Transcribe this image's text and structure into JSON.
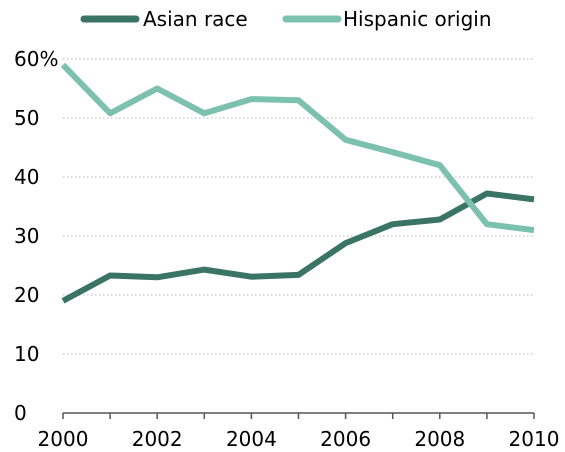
{
  "chart_data": {
    "type": "line",
    "title": "",
    "xlabel": "",
    "ylabel": "",
    "x": [
      2000,
      2001,
      2002,
      2003,
      2004,
      2005,
      2006,
      2007,
      2008,
      2009,
      2010
    ],
    "x_tick_labels": [
      "2000",
      "2002",
      "2004",
      "2006",
      "2008",
      "2010"
    ],
    "y_tick_labels": [
      "0",
      "10",
      "20",
      "30",
      "40",
      "50",
      "60%"
    ],
    "ylim": [
      0,
      60
    ],
    "xlim": [
      2000,
      2010
    ],
    "grid": "horizontal dotted",
    "legend_position": "top",
    "series": [
      {
        "name": "Asian race",
        "color": "#3a7563",
        "values": [
          19,
          23.3,
          23,
          24.3,
          23.1,
          23.4,
          28.8,
          32,
          32.8,
          37.2,
          36.2
        ]
      },
      {
        "name": "Hispanic origin",
        "color": "#7cc1ae",
        "values": [
          59,
          50.8,
          55,
          50.8,
          53.2,
          53,
          46.3,
          44.2,
          42,
          32,
          31
        ]
      }
    ]
  }
}
